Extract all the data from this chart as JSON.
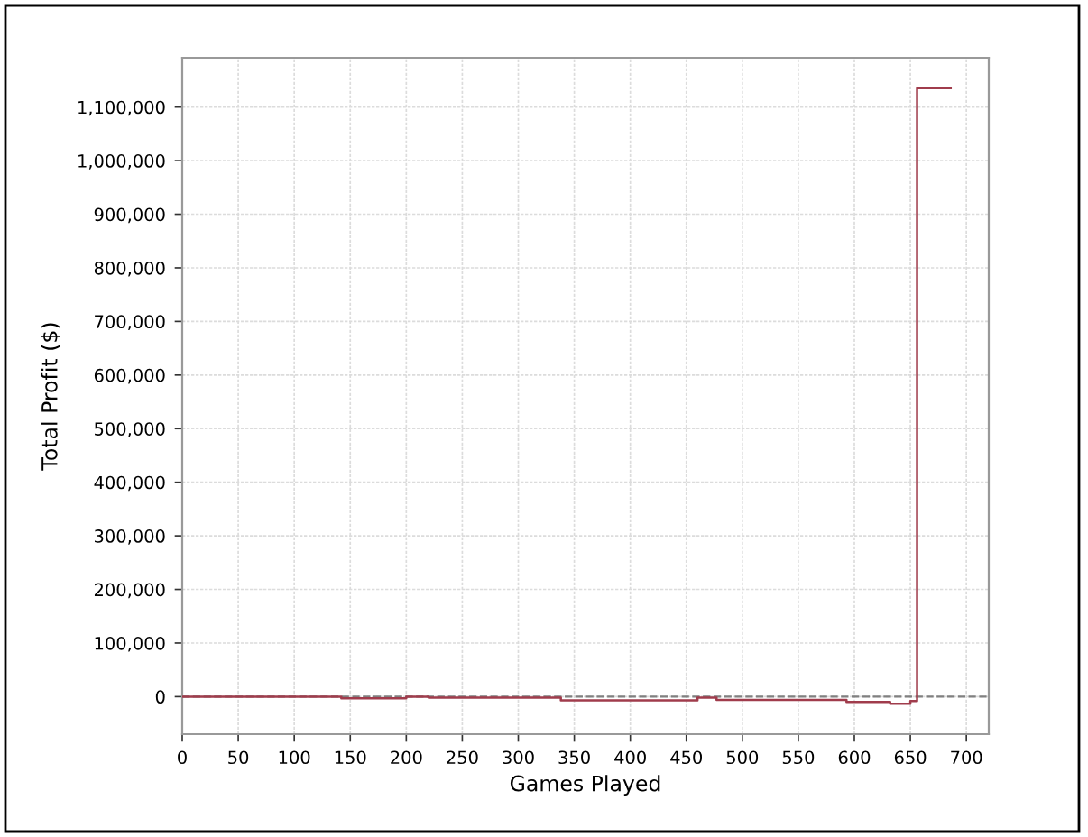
{
  "chart_data": {
    "type": "step",
    "xlabel": "Games Played",
    "ylabel": "Total Profit ($)",
    "x": [
      0,
      142,
      200,
      220,
      338,
      460,
      477,
      593,
      632,
      650,
      656,
      686
    ],
    "values": [
      0,
      -3000,
      0,
      -2000,
      -7000,
      -2000,
      -6000,
      -10000,
      -13000,
      -8000,
      1135000,
      1135000
    ],
    "color": "#a03c4c",
    "xlim": [
      0,
      720
    ],
    "ylim": [
      -70000,
      1192000
    ],
    "xticks": [
      0,
      50,
      100,
      150,
      200,
      250,
      300,
      350,
      400,
      450,
      500,
      550,
      600,
      650,
      700
    ],
    "yticks": [
      0,
      {
        "value": 100000,
        "label": "100,000"
      },
      {
        "value": 200000,
        "label": "200,000"
      },
      {
        "value": 300000,
        "label": "300,000"
      },
      {
        "value": 400000,
        "label": "400,000"
      },
      {
        "value": 500000,
        "label": "500,000"
      },
      {
        "value": 600000,
        "label": "600,000"
      },
      {
        "value": 700000,
        "label": "700,000"
      },
      {
        "value": 800000,
        "label": "800,000"
      },
      {
        "value": 900000,
        "label": "900,000"
      },
      {
        "value": 1000000,
        "label": "1,000,000"
      },
      {
        "value": 1100000,
        "label": "1,100,000"
      }
    ],
    "grid": true,
    "ref_lines": [
      {
        "axis": "y",
        "value": 0,
        "color": "#808080",
        "line_style": "dashed"
      }
    ]
  }
}
